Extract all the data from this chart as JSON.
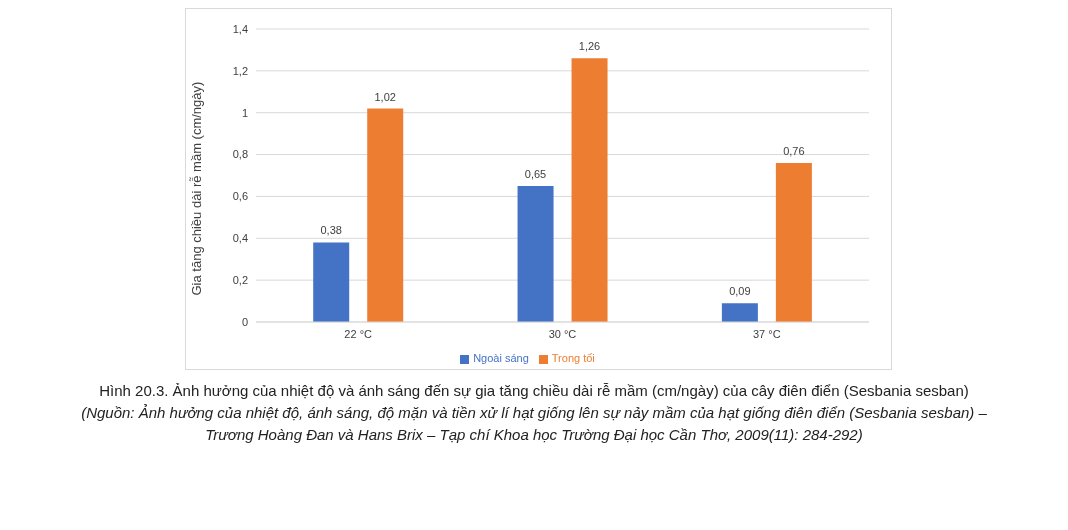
{
  "chart_data": {
    "type": "bar",
    "ylabel": "Gia tăng chiều dài rễ mầm (cm/ngày)",
    "categories": [
      "22 °C",
      "30 °C",
      "37 °C"
    ],
    "series": [
      {
        "name": "Ngoài sáng",
        "color": "#4472c4",
        "values": [
          0.38,
          0.65,
          0.09
        ],
        "value_labels": [
          "0,38",
          "0,65",
          "0,09"
        ]
      },
      {
        "name": "Trong tối",
        "color": "#ed7d31",
        "values": [
          1.02,
          1.26,
          0.76
        ],
        "value_labels": [
          "1,02",
          "1,26",
          "0,76"
        ]
      }
    ],
    "ylim": [
      0,
      1.4
    ],
    "yticks": [
      0,
      {
        "value": 0.2,
        "label": "0,2"
      },
      {
        "value": 0.4,
        "label": "0,4"
      },
      {
        "value": 0.6,
        "label": "0,6"
      },
      {
        "value": 0.8,
        "label": "0,8"
      },
      1,
      {
        "value": 1.2,
        "label": "1,2"
      },
      {
        "value": 1.4,
        "label": "1,4"
      }
    ],
    "grid": "y",
    "legend": "bottom",
    "annotations": [
      "Hình 20.3. Ảnh hưởng của nhiệt độ và ánh sáng đến sự gia tăng chiều dài rễ mầm (cm/ngày) của cây điên điển (Sesbania sesban)",
      "(Nguồn: Ảnh hưởng của nhiệt độ, ánh sáng, độ mặn và tiền xử lí hạt giống lên sự nảy mầm của hạt giống điên điển (Sesbania sesban) –",
      "Trương Hoàng Đan và Hans Brix – Tạp chí Khoa học Trường Đại học Cần Thơ, 2009(11): 284-292)"
    ]
  }
}
